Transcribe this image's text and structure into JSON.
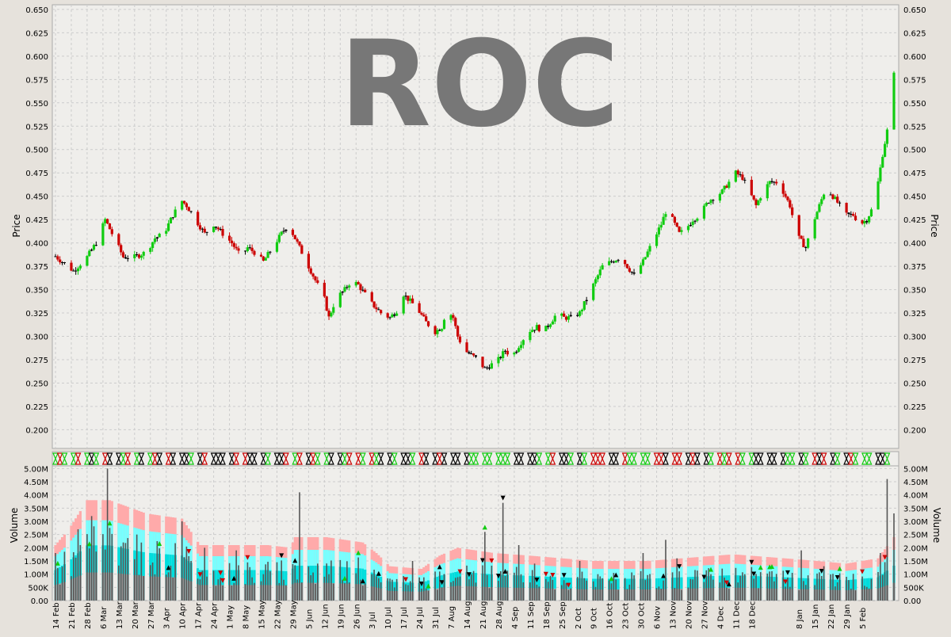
{
  "chart_data": [
    {
      "type": "ohlc",
      "title": "ROC",
      "ylabel": "Price",
      "ylim": [
        0.18,
        0.655
      ],
      "yticks": [
        "0.200",
        "0.225",
        "0.250",
        "0.275",
        "0.300",
        "0.325",
        "0.350",
        "0.375",
        "0.400",
        "0.425",
        "0.450",
        "0.475",
        "0.500",
        "0.525",
        "0.550",
        "0.575",
        "0.600",
        "0.625",
        "0.650"
      ],
      "xlabels": [
        "14 Feb",
        "21 Feb",
        "28 Feb",
        "6 Mar",
        "13 Mar",
        "20 Mar",
        "27 Mar",
        "3 Apr",
        "10 Apr",
        "17 Apr",
        "24 Apr",
        "1 May",
        "8 May",
        "15 May",
        "22 May",
        "29 May",
        "5 Jun",
        "12 Jun",
        "19 Jun",
        "26 Jun",
        "3 Jul",
        "10 Jul",
        "17 Jul",
        "24 Jul",
        "31 Jul",
        "7 Aug",
        "14 Aug",
        "21 Aug",
        "28 Aug",
        "4 Sep",
        "11 Sep",
        "18 Sep",
        "25 Sep",
        "2 Oct",
        "9 Oct",
        "16 Oct",
        "23 Oct",
        "30 Oct",
        "6 Nov",
        "13 Nov",
        "20 Nov",
        "27 Nov",
        "4 Dec",
        "11 Dec",
        "18 Dec",
        "8 Jan",
        "15 Jan",
        "22 Jan",
        "29 Jan",
        "5 Feb"
      ],
      "close_path": [
        [
          0.38,
          0.385
        ],
        [
          8,
          0.37
        ],
        [
          14,
          0.385
        ],
        [
          18,
          0.4
        ],
        [
          22,
          0.425
        ],
        [
          26,
          0.405
        ],
        [
          30,
          0.385
        ],
        [
          35,
          0.385
        ],
        [
          40,
          0.39
        ],
        [
          44,
          0.405
        ],
        [
          48,
          0.41
        ],
        [
          52,
          0.43
        ],
        [
          56,
          0.445
        ],
        [
          58,
          0.44
        ],
        [
          62,
          0.425
        ],
        [
          66,
          0.41
        ],
        [
          70,
          0.42
        ],
        [
          74,
          0.41
        ],
        [
          78,
          0.4
        ],
        [
          82,
          0.385
        ],
        [
          85,
          0.395
        ],
        [
          88,
          0.39
        ],
        [
          92,
          0.38
        ],
        [
          96,
          0.395
        ],
        [
          100,
          0.41
        ],
        [
          103,
          0.42
        ],
        [
          106,
          0.405
        ],
        [
          109,
          0.39
        ],
        [
          112,
          0.375
        ],
        [
          116,
          0.355
        ],
        [
          119,
          0.34
        ],
        [
          121,
          0.32
        ],
        [
          124,
          0.34
        ],
        [
          128,
          0.35
        ],
        [
          131,
          0.36
        ],
        [
          134,
          0.355
        ],
        [
          137,
          0.345
        ],
        [
          140,
          0.335
        ],
        [
          144,
          0.325
        ],
        [
          148,
          0.32
        ],
        [
          152,
          0.33
        ],
        [
          154,
          0.345
        ],
        [
          156,
          0.34
        ],
        [
          160,
          0.33
        ],
        [
          164,
          0.315
        ],
        [
          168,
          0.305
        ],
        [
          171,
          0.31
        ],
        [
          173,
          0.33
        ],
        [
          176,
          0.32
        ],
        [
          178,
          0.3
        ],
        [
          181,
          0.285
        ],
        [
          184,
          0.28
        ],
        [
          187,
          0.275
        ],
        [
          190,
          0.265
        ],
        [
          193,
          0.27
        ],
        [
          196,
          0.275
        ],
        [
          199,
          0.285
        ],
        [
          202,
          0.278
        ],
        [
          205,
          0.29
        ],
        [
          209,
          0.305
        ],
        [
          213,
          0.31
        ],
        [
          216,
          0.305
        ],
        [
          219,
          0.315
        ],
        [
          222,
          0.325
        ],
        [
          225,
          0.32
        ],
        [
          228,
          0.32
        ],
        [
          232,
          0.325
        ],
        [
          235,
          0.34
        ],
        [
          238,
          0.355
        ],
        [
          242,
          0.375
        ],
        [
          246,
          0.38
        ],
        [
          250,
          0.385
        ],
        [
          253,
          0.375
        ],
        [
          256,
          0.365
        ],
        [
          260,
          0.38
        ],
        [
          263,
          0.395
        ],
        [
          265,
          0.405
        ],
        [
          268,
          0.42
        ],
        [
          271,
          0.44
        ],
        [
          273,
          0.425
        ],
        [
          276,
          0.41
        ],
        [
          279,
          0.415
        ],
        [
          282,
          0.425
        ],
        [
          285,
          0.43
        ],
        [
          289,
          0.445
        ],
        [
          292,
          0.45
        ],
        [
          295,
          0.455
        ],
        [
          298,
          0.465
        ],
        [
          301,
          0.475
        ],
        [
          304,
          0.47
        ],
        [
          307,
          0.455
        ],
        [
          310,
          0.44
        ],
        [
          313,
          0.455
        ],
        [
          316,
          0.465
        ],
        [
          319,
          0.465
        ],
        [
          322,
          0.455
        ],
        [
          325,
          0.44
        ],
        [
          327,
          0.42
        ],
        [
          329,
          0.405
        ],
        [
          332,
          0.395
        ],
        [
          335,
          0.42
        ],
        [
          338,
          0.44
        ],
        [
          341,
          0.46
        ],
        [
          344,
          0.45
        ],
        [
          347,
          0.44
        ],
        [
          350,
          0.43
        ],
        [
          353,
          0.43
        ],
        [
          356,
          0.42
        ],
        [
          359,
          0.425
        ],
        [
          362,
          0.44
        ],
        [
          364,
          0.465
        ],
        [
          366,
          0.495
        ],
        [
          368,
          0.52
        ],
        [
          370,
          0.545
        ],
        [
          371,
          0.58
        ]
      ],
      "last_date_day": 371
    },
    {
      "type": "bar",
      "ylabel": "Volume",
      "ylim": [
        0,
        5.1
      ],
      "yunit": "M",
      "yticks": [
        "0.00",
        "500K",
        "1.00M",
        "1.50M",
        "2.00M",
        "2.50M",
        "3.00M",
        "3.50M",
        "4.00M",
        "4.50M",
        "5.00M"
      ],
      "volume_spikes": [
        [
          0,
          1.8
        ],
        [
          10,
          2.7
        ],
        [
          16,
          3.2
        ],
        [
          20,
          3.8
        ],
        [
          23,
          5.0
        ],
        [
          30,
          2.2
        ],
        [
          36,
          2.5
        ],
        [
          40,
          2.0
        ],
        [
          48,
          2.7
        ],
        [
          56,
          3.0
        ],
        [
          60,
          1.5
        ],
        [
          66,
          2.0
        ],
        [
          80,
          1.9
        ],
        [
          89,
          2.8
        ],
        [
          104,
          3.9
        ],
        [
          108,
          4.1
        ],
        [
          116,
          1.4
        ],
        [
          140,
          1.0
        ],
        [
          158,
          1.5
        ],
        [
          170,
          1.1
        ],
        [
          184,
          1.0
        ],
        [
          190,
          2.6
        ],
        [
          198,
          3.7
        ],
        [
          205,
          2.1
        ],
        [
          212,
          1.4
        ],
        [
          222,
          1.8
        ],
        [
          232,
          1.5
        ],
        [
          240,
          1.0
        ],
        [
          250,
          1.3
        ],
        [
          260,
          1.8
        ],
        [
          270,
          2.3
        ],
        [
          275,
          1.6
        ],
        [
          282,
          0.8
        ],
        [
          290,
          1.0
        ],
        [
          300,
          3.2
        ],
        [
          306,
          1.8
        ],
        [
          314,
          1.3
        ],
        [
          320,
          1.3
        ],
        [
          330,
          1.9
        ],
        [
          340,
          1.3
        ],
        [
          350,
          0.9
        ],
        [
          356,
          1.3
        ],
        [
          365,
          1.8
        ],
        [
          368,
          4.6
        ],
        [
          369,
          4.3
        ],
        [
          370,
          2.3
        ],
        [
          371,
          3.3
        ]
      ],
      "volume_band_outer": [
        [
          0,
          2.1
        ],
        [
          6,
          2.7
        ],
        [
          14,
          3.8
        ],
        [
          24,
          3.8
        ],
        [
          40,
          3.3
        ],
        [
          56,
          3.1
        ],
        [
          64,
          2.1
        ],
        [
          80,
          2.1
        ],
        [
          94,
          2.1
        ],
        [
          104,
          2.0
        ],
        [
          106,
          2.4
        ],
        [
          120,
          2.4
        ],
        [
          136,
          2.2
        ],
        [
          142,
          1.8
        ],
        [
          148,
          1.3
        ],
        [
          162,
          1.2
        ],
        [
          170,
          1.7
        ],
        [
          178,
          2.0
        ],
        [
          194,
          1.8
        ],
        [
          210,
          1.7
        ],
        [
          224,
          1.6
        ],
        [
          238,
          1.5
        ],
        [
          262,
          1.5
        ],
        [
          300,
          1.75
        ],
        [
          330,
          1.55
        ],
        [
          350,
          1.4
        ],
        [
          364,
          1.6
        ],
        [
          371,
          2.4
        ]
      ],
      "signal_marker_rows": 1
    }
  ],
  "colors": {
    "up": "#11cc11",
    "down": "#cc0000",
    "neutral": "#000000",
    "watermark": "#777777",
    "panel_bg": "#efeeeb",
    "band_outer": "#ffaaaa",
    "band_mid": "#77ffff",
    "band_inner": "#00dddd"
  }
}
